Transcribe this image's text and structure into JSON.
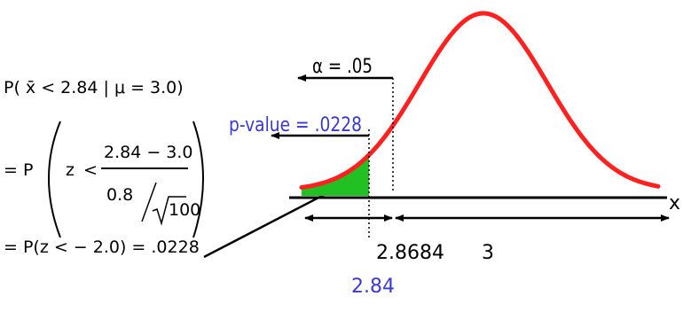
{
  "formula": {
    "line1": "P( x̄ < 2.84  | μ = 3.0)",
    "line2_prefix": "= P",
    "z": "z",
    "lt": "<",
    "numerator": "2.84   − 3.0",
    "denominator_left": "0.8",
    "denominator_sqrt": "100",
    "line3": "= P(z  <  − 2.0)  =  .0228"
  },
  "diagram": {
    "alpha_label": "α =  .05",
    "pvalue_label": "p-value = .0228",
    "axis_label": "x",
    "tick_critical": "2.8684",
    "tick_mean": "3",
    "tick_sample": "2.84",
    "colors": {
      "curve": "#ff2020",
      "shade": "#22c022",
      "blue_text": "#3a3ad0",
      "ink": "#000000"
    }
  }
}
